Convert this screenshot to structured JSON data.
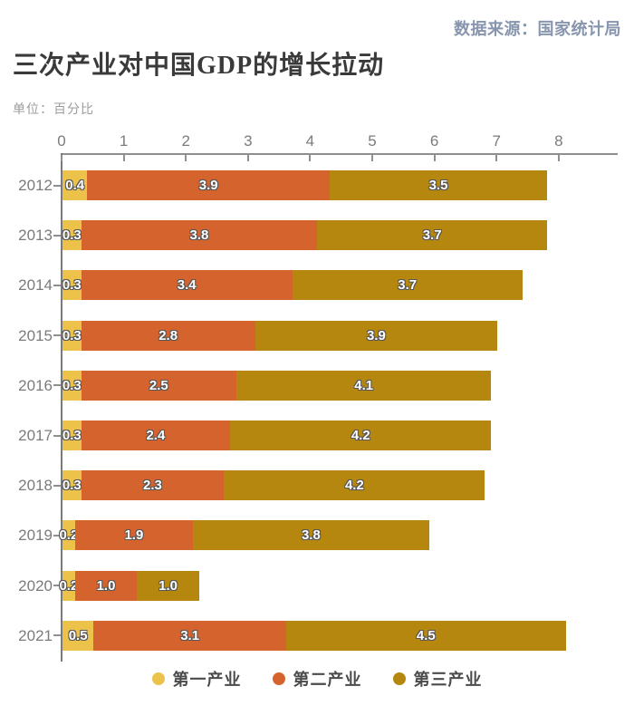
{
  "source": "数据来源：国家统计局",
  "title": "三次产业对中国GDP的增长拉动",
  "unit_label": "单位：百分比",
  "chart_data": {
    "type": "bar",
    "orientation": "horizontal",
    "stacked": true,
    "title": "三次产业对中国GDP的增长拉动",
    "unit": "百分比",
    "categories": [
      "2012",
      "2013",
      "2014",
      "2015",
      "2016",
      "2017",
      "2018",
      "2019",
      "2020",
      "2021"
    ],
    "series": [
      {
        "name": "第一产业",
        "color": "#ecc24a",
        "values": [
          0.4,
          0.3,
          0.3,
          0.3,
          0.3,
          0.3,
          0.3,
          0.2,
          0.2,
          0.5
        ]
      },
      {
        "name": "第二产业",
        "color": "#d5632d",
        "values": [
          3.9,
          3.8,
          3.4,
          2.8,
          2.5,
          2.4,
          2.3,
          1.9,
          1.0,
          3.1
        ]
      },
      {
        "name": "第三产业",
        "color": "#b6870e",
        "values": [
          3.5,
          3.7,
          3.7,
          3.9,
          4.1,
          4.2,
          4.2,
          3.8,
          1.0,
          4.5
        ]
      }
    ],
    "totals": [
      7.8,
      7.8,
      7.4,
      7.0,
      6.9,
      6.9,
      6.8,
      5.9,
      2.2,
      8.1
    ],
    "xlim": [
      0,
      8
    ],
    "x_ticks": [
      0,
      1,
      2,
      3,
      4,
      5,
      6,
      7,
      8
    ],
    "grid": false,
    "value_labels": true,
    "legend_position": "bottom"
  },
  "colors": {
    "primary_industry": "#ecc24a",
    "secondary_industry": "#d5632d",
    "tertiary_industry": "#b6870e",
    "source_text": "#8795ae",
    "title_text": "#3a3a3a",
    "axis_text": "#7b7b7b"
  }
}
